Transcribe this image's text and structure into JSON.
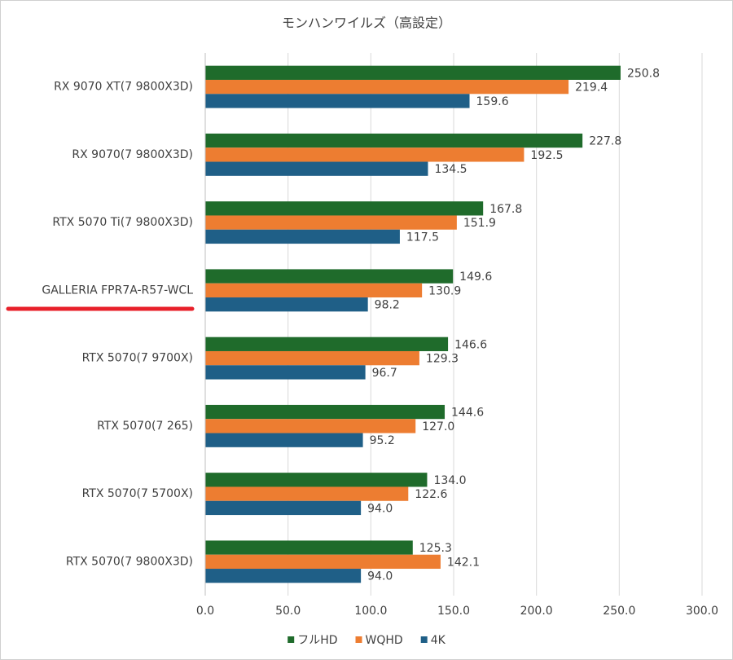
{
  "chart_data": {
    "type": "bar",
    "title": "モンハンワイルズ（高設定）",
    "categories": [
      "RX 9070 XT(7 9800X3D)",
      "RX 9070(7 9800X3D)",
      "RTX 5070 Ti(7 9800X3D)",
      "GALLERIA FPR7A-R57-WCL",
      "RTX 5070(7 9700X)",
      "RTX 5070(7 265)",
      "RTX 5070(7 5700X)",
      "RTX 5070(7 9800X3D)"
    ],
    "series": [
      {
        "name": "フルHD",
        "color": "#1f6b2b",
        "values": [
          250.8,
          227.8,
          167.8,
          149.6,
          146.6,
          144.6,
          134.0,
          125.3
        ],
        "value_labels": [
          "250.8",
          "227.8",
          "167.8",
          "149.6",
          "146.6",
          "144.6",
          "134.0",
          "125.3"
        ]
      },
      {
        "name": "WQHD",
        "color": "#ed7d31",
        "values": [
          219.4,
          192.5,
          151.9,
          130.9,
          129.3,
          127.0,
          122.6,
          142.1
        ],
        "value_labels": [
          "219.4",
          "192.5",
          "151.9",
          "130.9",
          "129.3",
          "127.0",
          "122.6",
          "142.1"
        ]
      },
      {
        "name": "4K",
        "color": "#1f5f87",
        "values": [
          159.6,
          134.5,
          117.5,
          98.2,
          96.7,
          95.2,
          94.0,
          94.0
        ],
        "value_labels": [
          "159.6",
          "134.5",
          "117.5",
          "98.2",
          "96.7",
          "95.2",
          "94.0",
          "94.0"
        ]
      }
    ],
    "xlim": [
      0,
      300
    ],
    "xticks": [
      {
        "value": 0,
        "label": "0.0"
      },
      {
        "value": 50,
        "label": "50.0"
      },
      {
        "value": 100,
        "label": "100.0"
      },
      {
        "value": 150,
        "label": "150.0"
      },
      {
        "value": 200,
        "label": "200.0"
      },
      {
        "value": 250,
        "label": "250.0"
      },
      {
        "value": 300,
        "label": "300.0"
      }
    ],
    "grid": true
  }
}
